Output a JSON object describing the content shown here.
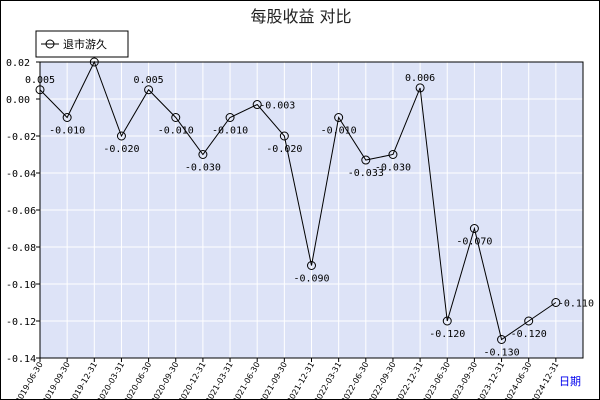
{
  "chart_data": {
    "type": "line",
    "title": "每股收益  对比",
    "xlabel": "日期",
    "ylabel": "",
    "ylim": [
      -0.14,
      0.02
    ],
    "yticks": [
      0.02,
      0.0,
      -0.02,
      -0.04,
      -0.06,
      -0.08,
      -0.1,
      -0.12,
      -0.14
    ],
    "ytick_labels": [
      "0.02",
      "0.00",
      "-0.02",
      "-0.04",
      "-0.06",
      "-0.08",
      "-0.10",
      "-0.12",
      "-0.14"
    ],
    "grid": true,
    "legend_position": "top-left",
    "categories": [
      "2019-06-30",
      "2019-09-30",
      "2019-12-31",
      "2020-03-31",
      "2020-06-30",
      "2020-09-30",
      "2020-12-31",
      "2021-03-31",
      "2021-06-30",
      "2021-09-30",
      "2021-12-31",
      "2022-03-31",
      "2022-06-30",
      "2022-09-30",
      "2022-12-31",
      "2023-06-30",
      "2023-09-30",
      "2023-12-31",
      "2024-06-30",
      "2024-12-31"
    ],
    "series": [
      {
        "name": "退市游久",
        "values": [
          0.005,
          -0.01,
          0.02,
          -0.02,
          0.005,
          -0.01,
          -0.03,
          -0.01,
          -0.003,
          -0.02,
          -0.09,
          -0.01,
          -0.033,
          -0.03,
          0.006,
          -0.12,
          -0.07,
          -0.13,
          -0.12,
          -0.11
        ],
        "labels": [
          "0.005",
          "-0.010",
          "0.020",
          "-0.020",
          "0.005",
          "-0.010",
          "-0.030",
          "-0.010",
          "-0.003",
          "-0.020",
          "-0.090",
          "-0.010",
          "-0.033",
          "-0.030",
          "0.006",
          "-0.120",
          "-0.070",
          "-0.130",
          "-0.120",
          "-0.110"
        ],
        "label_positions": [
          "above",
          "below",
          "above",
          "below",
          "above",
          "below",
          "below",
          "below",
          "right",
          "below",
          "below",
          "below",
          "below",
          "below",
          "above",
          "below",
          "below",
          "below",
          "below",
          "right"
        ],
        "color": "#000000"
      }
    ],
    "colors": {
      "plot_background": "#dde3f7",
      "grid": "#ffffff",
      "axis": "#000000"
    }
  }
}
